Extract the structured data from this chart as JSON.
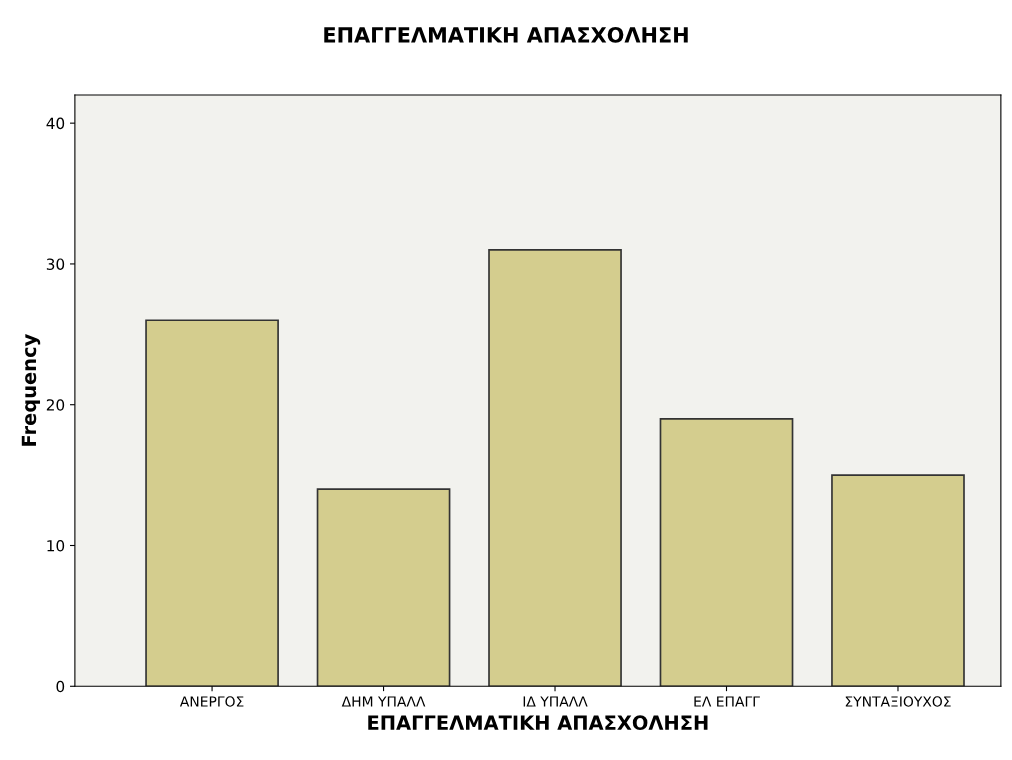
{
  "chart_data": {
    "type": "bar",
    "title": "ΕΠΑΓΓΕΛΜΑΤΙΚΗ ΑΠΑΣΧΟΛΗΣΗ",
    "xlabel": "ΕΠΑΓΓΕΛΜΑΤΙΚΗ ΑΠΑΣΧΟΛΗΣΗ",
    "ylabel": "Frequency",
    "categories": [
      "ΑΝΕΡΓΟΣ",
      "ΔΗΜ ΥΠΑΛΛ",
      "ΙΔ ΥΠΑΛΛ",
      "ΕΛ ΕΠΑΓΓ",
      "ΣΥΝΤΑΞΙΟΥΧΟΣ"
    ],
    "values": [
      26,
      14,
      31,
      19,
      15
    ],
    "color": "#d4cd8e",
    "ylim": [
      0,
      42
    ],
    "yticks": [
      0,
      10,
      20,
      30,
      40
    ],
    "grid": false
  }
}
